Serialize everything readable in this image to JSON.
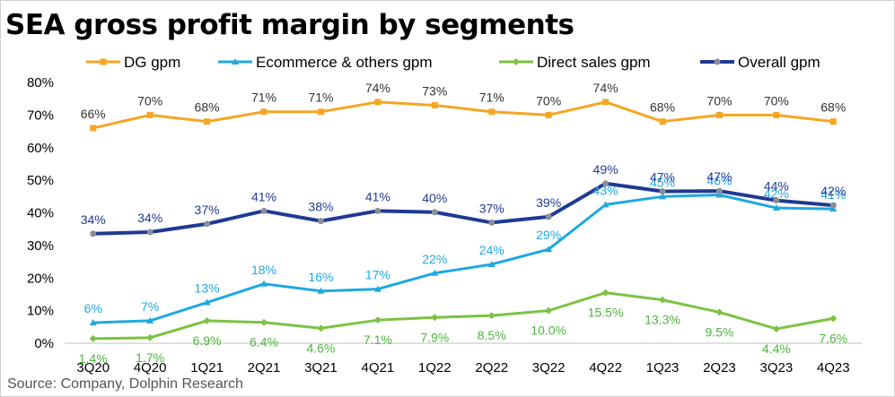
{
  "title": "SEA gross profit margin by segments",
  "source": "Source: Company, Dolphin Research",
  "chart_data": {
    "type": "line",
    "categories": [
      "3Q20",
      "4Q20",
      "1Q21",
      "2Q21",
      "3Q21",
      "4Q21",
      "1Q22",
      "2Q22",
      "3Q22",
      "4Q22",
      "1Q23",
      "2Q23",
      "3Q23",
      "4Q23"
    ],
    "y_ticks": [
      "0%",
      "10%",
      "20%",
      "30%",
      "40%",
      "50%",
      "60%",
      "70%",
      "80%"
    ],
    "ylim": [
      0,
      80
    ],
    "legend_position": "top",
    "series": [
      {
        "name": "DG gpm",
        "color": "#F5A623",
        "marker": "square",
        "values": [
          66,
          70,
          68,
          71,
          71,
          74,
          73,
          71,
          70,
          74,
          68,
          70,
          70,
          68
        ],
        "labels": [
          "66%",
          "70%",
          "68%",
          "71%",
          "71%",
          "74%",
          "73%",
          "71%",
          "70%",
          "74%",
          "68%",
          "70%",
          "70%",
          "68%"
        ]
      },
      {
        "name": "Ecommerce & others gpm",
        "color": "#1FA8E0",
        "marker": "triangle",
        "values": [
          6.3,
          6.9,
          12.5,
          18.2,
          16.0,
          16.6,
          21.5,
          24.2,
          28.8,
          42.5,
          45.0,
          45.5,
          41.5,
          41.2
        ],
        "labels": [
          "6%",
          "7%",
          "13%",
          "18%",
          "16%",
          "17%",
          "22%",
          "24%",
          "29%",
          "43%",
          "45%",
          "46%",
          "42%",
          "41%"
        ]
      },
      {
        "name": "Direct sales gpm",
        "color": "#7DC242",
        "marker": "diamond",
        "values": [
          1.4,
          1.7,
          6.9,
          6.4,
          4.6,
          7.1,
          7.9,
          8.5,
          10.0,
          15.5,
          13.3,
          9.5,
          4.4,
          7.6
        ],
        "labels": [
          "1.4%",
          "1.7%",
          "6.9%",
          "6.4%",
          "4.6%",
          "7.1%",
          "7.9%",
          "8.5%",
          "10.0%",
          "15.5%",
          "13.3%",
          "9.5%",
          "4.4%",
          "7.6%"
        ]
      },
      {
        "name": "Overall gpm",
        "color": "#1F3A93",
        "marker": "circle",
        "values": [
          33.6,
          34.1,
          36.6,
          40.6,
          37.5,
          40.6,
          40.2,
          37.0,
          38.8,
          49.0,
          46.6,
          46.7,
          43.8,
          42.3
        ],
        "labels": [
          "34%",
          "34%",
          "37%",
          "41%",
          "38%",
          "41%",
          "40%",
          "37%",
          "39%",
          "49%",
          "47%",
          "47%",
          "44%",
          "42%"
        ]
      }
    ]
  }
}
